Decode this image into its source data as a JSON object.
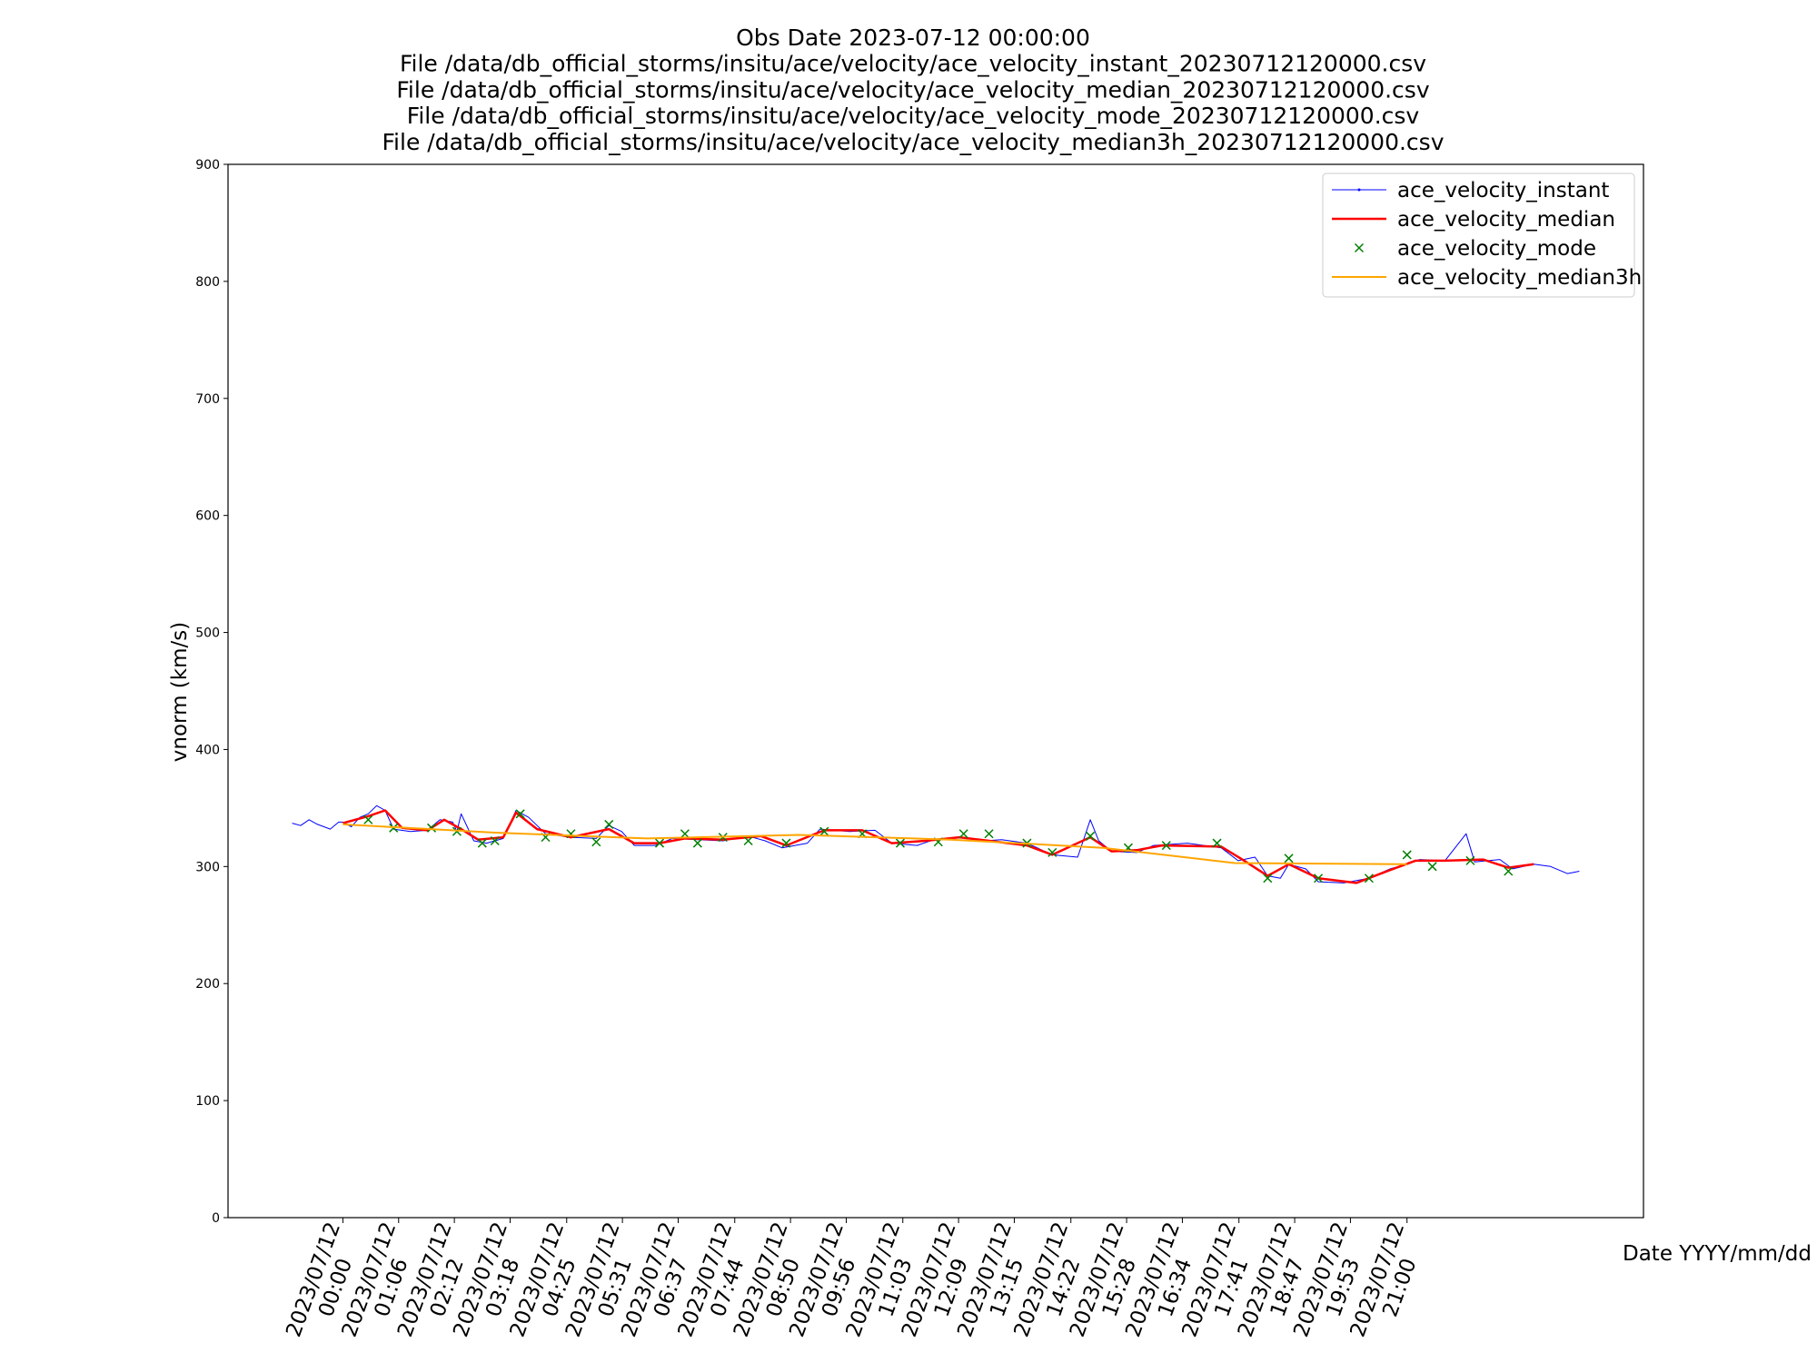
{
  "chart_data": {
    "type": "line",
    "title": [
      "Obs Date 2023-07-12 00:00:00",
      "File /data/db_official_storms/insitu/ace/velocity/ace_velocity_instant_20230712120000.csv",
      "File /data/db_official_storms/insitu/ace/velocity/ace_velocity_median_20230712120000.csv",
      "File /data/db_official_storms/insitu/ace/velocity/ace_velocity_mode_20230712120000.csv",
      "File /data/db_official_storms/insitu/ace/velocity/ace_velocity_median3h_20230712120000.csv"
    ],
    "y_label": "vnorm (km/s)",
    "x_label": "Date YYYY/mm/dd",
    "legend": "upper right",
    "xlim": [
      "2023-07-11 21:44",
      "2023-07-13 01:40"
    ],
    "ylim": [
      0,
      900
    ],
    "yticks": [
      0,
      100,
      200,
      300,
      400,
      500,
      600,
      700,
      800,
      900
    ],
    "xticks": [
      {
        "value": "2023-07-12 00:00",
        "label": "2023/07/12\n00:00"
      },
      {
        "value": "2023-07-12 01:06",
        "label": "2023/07/12\n01:06"
      },
      {
        "value": "2023-07-12 02:12",
        "label": "2023/07/12\n02:12"
      },
      {
        "value": "2023-07-12 03:18",
        "label": "2023/07/12\n03:18"
      },
      {
        "value": "2023-07-12 04:25",
        "label": "2023/07/12\n04:25"
      },
      {
        "value": "2023-07-12 05:31",
        "label": "2023/07/12\n05:31"
      },
      {
        "value": "2023-07-12 06:37",
        "label": "2023/07/12\n06:37"
      },
      {
        "value": "2023-07-12 07:44",
        "label": "2023/07/12\n07:44"
      },
      {
        "value": "2023-07-12 08:50",
        "label": "2023/07/12\n08:50"
      },
      {
        "value": "2023-07-12 09:56",
        "label": "2023/07/12\n09:56"
      },
      {
        "value": "2023-07-12 11:03",
        "label": "2023/07/12\n11:03"
      },
      {
        "value": "2023-07-12 12:09",
        "label": "2023/07/12\n12:09"
      },
      {
        "value": "2023-07-12 13:15",
        "label": "2023/07/12\n13:15"
      },
      {
        "value": "2023-07-12 14:22",
        "label": "2023/07/12\n14:22"
      },
      {
        "value": "2023-07-12 15:28",
        "label": "2023/07/12\n15:28"
      },
      {
        "value": "2023-07-12 16:34",
        "label": "2023/07/12\n16:34"
      },
      {
        "value": "2023-07-12 17:41",
        "label": "2023/07/12\n17:41"
      },
      {
        "value": "2023-07-12 18:47",
        "label": "2023/07/12\n18:47"
      },
      {
        "value": "2023-07-12 19:53",
        "label": "2023/07/12\n19:53"
      },
      {
        "value": "2023-07-12 21:00",
        "label": "2023/07/12\n21:00"
      }
    ],
    "series": [
      {
        "name": "ace_velocity_instant",
        "color": "blue",
        "linewidth": 1,
        "marker": "dot",
        "x": [
          "2023-07-11 23:00",
          "2023-07-11 23:10",
          "2023-07-11 23:20",
          "2023-07-11 23:30",
          "2023-07-11 23:45",
          "2023-07-11 23:55",
          "2023-07-12 00:00",
          "2023-07-12 00:10",
          "2023-07-12 00:20",
          "2023-07-12 00:30",
          "2023-07-12 00:40",
          "2023-07-12 00:50",
          "2023-07-12 01:00",
          "2023-07-12 01:20",
          "2023-07-12 01:40",
          "2023-07-12 01:55",
          "2023-07-12 02:10",
          "2023-07-12 02:15",
          "2023-07-12 02:20",
          "2023-07-12 02:35",
          "2023-07-12 02:50",
          "2023-07-12 03:10",
          "2023-07-12 03:25",
          "2023-07-12 03:40",
          "2023-07-12 04:00",
          "2023-07-12 04:30",
          "2023-07-12 05:00",
          "2023-07-12 05:15",
          "2023-07-12 05:30",
          "2023-07-12 05:45",
          "2023-07-12 06:10",
          "2023-07-12 06:30",
          "2023-07-12 07:00",
          "2023-07-12 07:30",
          "2023-07-12 08:00",
          "2023-07-12 08:20",
          "2023-07-12 08:40",
          "2023-07-12 09:10",
          "2023-07-12 09:25",
          "2023-07-12 10:00",
          "2023-07-12 10:30",
          "2023-07-12 10:50",
          "2023-07-12 11:20",
          "2023-07-12 11:40",
          "2023-07-12 12:10",
          "2023-07-12 12:40",
          "2023-07-12 13:00",
          "2023-07-12 13:30",
          "2023-07-12 14:00",
          "2023-07-12 14:30",
          "2023-07-12 14:45",
          "2023-07-12 14:55",
          "2023-07-12 15:10",
          "2023-07-12 15:40",
          "2023-07-12 16:00",
          "2023-07-12 16:40",
          "2023-07-12 17:20",
          "2023-07-12 17:40",
          "2023-07-12 18:00",
          "2023-07-12 18:15",
          "2023-07-12 18:30",
          "2023-07-12 18:40",
          "2023-07-12 19:00",
          "2023-07-12 19:15",
          "2023-07-12 19:45",
          "2023-07-12 20:15",
          "2023-07-12 20:40",
          "2023-07-12 21:00",
          "2023-07-12 21:15",
          "2023-07-12 21:45",
          "2023-07-12 22:10",
          "2023-07-12 22:20",
          "2023-07-12 22:50",
          "2023-07-12 23:05",
          "2023-07-12 23:30",
          "2023-07-12 23:50",
          "2023-07-13 00:10",
          "2023-07-13 00:24"
        ],
        "values": [
          337,
          335,
          340,
          336,
          332,
          338,
          338,
          334,
          342,
          345,
          352,
          348,
          332,
          330,
          331,
          340,
          338,
          330,
          345,
          322,
          320,
          324,
          348,
          342,
          328,
          325,
          324,
          335,
          330,
          318,
          318,
          324,
          323,
          322,
          326,
          322,
          316,
          320,
          332,
          330,
          331,
          320,
          318,
          323,
          325,
          322,
          323,
          320,
          310,
          308,
          340,
          322,
          313,
          312,
          318,
          320,
          316,
          305,
          308,
          292,
          290,
          302,
          298,
          287,
          286,
          290,
          298,
          302,
          306,
          305,
          328,
          304,
          306,
          298,
          302,
          300,
          294,
          296
        ]
      },
      {
        "name": "ace_velocity_median",
        "color": "red",
        "linewidth": 2.5,
        "marker": "none",
        "x": [
          "2023-07-12 00:00",
          "2023-07-12 00:30",
          "2023-07-12 00:50",
          "2023-07-12 01:10",
          "2023-07-12 01:40",
          "2023-07-12 02:00",
          "2023-07-12 02:20",
          "2023-07-12 02:40",
          "2023-07-12 03:10",
          "2023-07-12 03:25",
          "2023-07-12 03:50",
          "2023-07-12 04:30",
          "2023-07-12 05:15",
          "2023-07-12 05:45",
          "2023-07-12 06:15",
          "2023-07-12 06:45",
          "2023-07-12 07:30",
          "2023-07-12 08:15",
          "2023-07-12 08:45",
          "2023-07-12 09:30",
          "2023-07-12 10:15",
          "2023-07-12 10:50",
          "2023-07-12 11:30",
          "2023-07-12 12:10",
          "2023-07-12 12:45",
          "2023-07-12 13:30",
          "2023-07-12 14:00",
          "2023-07-12 14:45",
          "2023-07-12 15:10",
          "2023-07-12 15:40",
          "2023-07-12 16:10",
          "2023-07-12 17:20",
          "2023-07-12 17:45",
          "2023-07-12 18:15",
          "2023-07-12 18:40",
          "2023-07-12 19:15",
          "2023-07-12 20:00",
          "2023-07-12 20:40",
          "2023-07-12 21:10",
          "2023-07-12 21:45",
          "2023-07-12 22:30",
          "2023-07-12 23:00",
          "2023-07-12 23:30"
        ],
        "values": [
          337,
          343,
          348,
          333,
          331,
          340,
          332,
          323,
          325,
          346,
          332,
          325,
          332,
          320,
          320,
          324,
          323,
          326,
          318,
          331,
          331,
          320,
          322,
          325,
          322,
          318,
          310,
          325,
          313,
          314,
          318,
          317,
          306,
          292,
          302,
          290,
          286,
          297,
          305,
          305,
          306,
          299,
          302
        ]
      },
      {
        "name": "ace_velocity_mode",
        "color": "green",
        "linewidth": 0,
        "marker": "x",
        "x": [
          "2023-07-12 00:30",
          "2023-07-12 01:00",
          "2023-07-12 01:45",
          "2023-07-12 02:15",
          "2023-07-12 02:45",
          "2023-07-12 03:00",
          "2023-07-12 03:30",
          "2023-07-12 04:00",
          "2023-07-12 04:30",
          "2023-07-12 05:00",
          "2023-07-12 05:15",
          "2023-07-12 06:15",
          "2023-07-12 06:45",
          "2023-07-12 07:00",
          "2023-07-12 07:30",
          "2023-07-12 08:00",
          "2023-07-12 08:45",
          "2023-07-12 09:30",
          "2023-07-12 10:15",
          "2023-07-12 11:00",
          "2023-07-12 11:45",
          "2023-07-12 12:15",
          "2023-07-12 12:45",
          "2023-07-12 13:30",
          "2023-07-12 14:00",
          "2023-07-12 14:45",
          "2023-07-12 15:30",
          "2023-07-12 16:15",
          "2023-07-12 17:15",
          "2023-07-12 18:15",
          "2023-07-12 18:40",
          "2023-07-12 19:15",
          "2023-07-12 20:15",
          "2023-07-12 21:00",
          "2023-07-12 21:30",
          "2023-07-12 22:15",
          "2023-07-12 23:00"
        ],
        "values": [
          340,
          333,
          333,
          330,
          320,
          322,
          345,
          325,
          328,
          321,
          336,
          320,
          328,
          320,
          325,
          322,
          320,
          330,
          328,
          320,
          321,
          328,
          328,
          320,
          312,
          326,
          316,
          318,
          320,
          290,
          307,
          290,
          290,
          310,
          300,
          305,
          296
        ]
      },
      {
        "name": "ace_velocity_median3h",
        "color": "orange",
        "linewidth": 2,
        "marker": "none",
        "x": [
          "2023-07-12 00:00",
          "2023-07-12 03:00",
          "2023-07-12 06:00",
          "2023-07-12 09:00",
          "2023-07-12 12:00",
          "2023-07-12 15:00",
          "2023-07-12 17:36",
          "2023-07-12 21:00"
        ],
        "values": [
          336,
          329,
          324,
          327,
          323,
          316,
          303,
          302
        ]
      }
    ]
  }
}
